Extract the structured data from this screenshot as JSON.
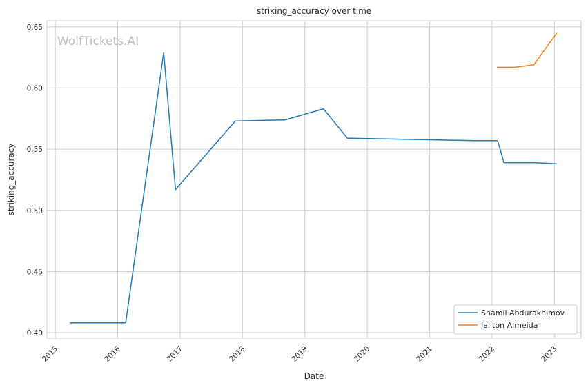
{
  "chart_data": {
    "type": "line",
    "title": "striking_accuracy over time",
    "xlabel": "Date",
    "ylabel": "striking_accuracy",
    "xlim": [
      "2014-11-13",
      "2023-06-06"
    ],
    "ylim": [
      0.3955,
      0.655
    ],
    "xticks": [
      "2015",
      "2016",
      "2017",
      "2018",
      "2019",
      "2020",
      "2021",
      "2022",
      "2023"
    ],
    "yticks": [
      "0.40",
      "0.45",
      "0.50",
      "0.55",
      "0.60",
      "0.65"
    ],
    "grid": true,
    "legend_position": "bottom-right",
    "watermark": "WolfTickets.AI",
    "series": [
      {
        "name": "Shamil Abdurakhimov",
        "color": "#1f77b4",
        "x": [
          "2015-03-28",
          "2016-02-17",
          "2016-09-27",
          "2016-12-05",
          "2017-11-20",
          "2018-09-08",
          "2019-04-20",
          "2019-09-07",
          "2021-09-20",
          "2022-02-03",
          "2022-03-12",
          "2022-09-07",
          "2023-01-15"
        ],
        "y": [
          0.408,
          0.408,
          0.629,
          0.517,
          0.573,
          0.574,
          0.583,
          0.559,
          0.557,
          0.557,
          0.539,
          0.539,
          0.538
        ]
      },
      {
        "name": "Jailton Almeida",
        "color": "#ff7f0e",
        "x": [
          "2022-01-29",
          "2022-05-15",
          "2022-09-03",
          "2023-01-15"
        ],
        "y": [
          0.617,
          0.617,
          0.619,
          0.645
        ]
      }
    ]
  }
}
